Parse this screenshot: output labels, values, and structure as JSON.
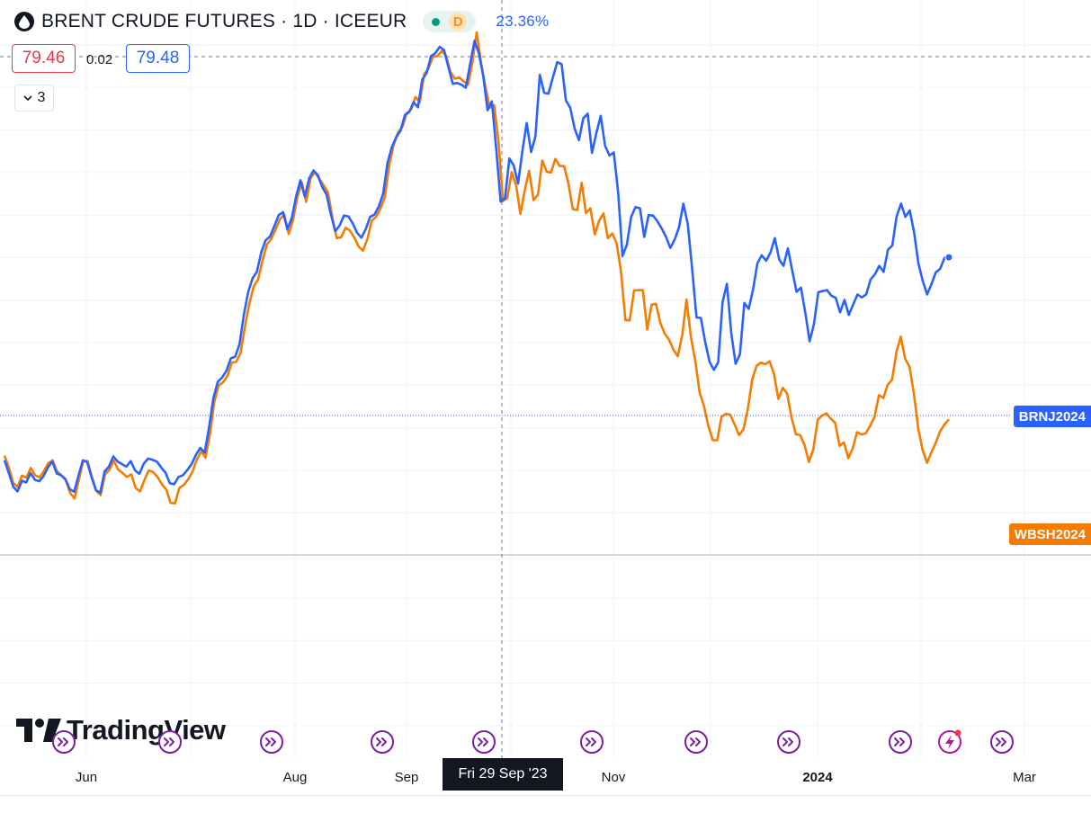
{
  "header": {
    "title": "BRENT CRUDE FUTURES · 1D · ICEEUR",
    "interval_badge": "D",
    "percent": "23.36%"
  },
  "prices": {
    "left": "79.46",
    "spread": "0.02",
    "right": "79.48"
  },
  "indicators_toggle": {
    "count": "3"
  },
  "series_tags": {
    "brn": "BRNJ2024",
    "wbs": "WBSH2024"
  },
  "x_axis": {
    "labels": [
      "Jun",
      "Aug",
      "Sep",
      "Nov",
      "2024",
      "Mar"
    ],
    "crosshair_label": "Fri 29 Sep '23"
  },
  "brand": {
    "logo_text": "TradingView"
  },
  "colors": {
    "brn": "#2962ff",
    "wbs": "#f57c00",
    "sell_red": "#f23645",
    "buy_blue": "#2962ff",
    "event_purple": "#7b1fa2"
  },
  "events": [
    {
      "icon": "dividend-arrow-icon"
    },
    {
      "icon": "dividend-arrow-icon"
    },
    {
      "icon": "dividend-arrow-icon"
    },
    {
      "icon": "dividend-arrow-icon"
    },
    {
      "icon": "dividend-arrow-icon"
    },
    {
      "icon": "dividend-arrow-icon"
    },
    {
      "icon": "dividend-arrow-icon"
    },
    {
      "icon": "dividend-arrow-icon"
    },
    {
      "icon": "dividend-arrow-icon"
    },
    {
      "icon": "lightning-icon"
    },
    {
      "icon": "dividend-arrow-icon"
    }
  ],
  "chart_data": {
    "type": "line",
    "title": "BRENT CRUDE FUTURES · 1D · ICEEUR",
    "xlabel": "",
    "ylabel": "",
    "grid": true,
    "x_ticks": [
      "Jun",
      "Aug",
      "Sep",
      "Nov",
      "2024",
      "Mar"
    ],
    "series": [
      {
        "name": "BRNJ2024",
        "color": "#2962ff",
        "values": [
          22.2,
          19.2,
          16.0,
          14.9,
          17.4,
          17.0,
          19.2,
          17.6,
          17.3,
          18.5,
          20.6,
          21.9,
          19.1,
          18.7,
          17.8,
          15.4,
          14.8,
          18.6,
          22.2,
          21.8,
          18.2,
          15.2,
          14.6,
          19.6,
          20.7,
          23.1,
          21.9,
          21.3,
          20.7,
          22.0,
          19.8,
          19.0,
          21.4,
          22.6,
          22.3,
          21.9,
          20.5,
          19.3,
          16.8,
          16.6,
          18.3,
          18.7,
          19.9,
          21.3,
          23.5,
          25.1,
          24.0,
          29.9,
          36.8,
          40.6,
          41.6,
          43.2,
          46.1,
          46.5,
          49.4,
          56.3,
          61.7,
          64.9,
          66.4,
          71.0,
          73.8,
          74.7,
          77.1,
          79.7,
          80.4,
          76.4,
          79.0,
          84.1,
          87.9,
          84.0,
          88.3,
          90.2,
          89.1,
          86.3,
          84.5,
          79.9,
          75.9,
          77.3,
          79.6,
          79.4,
          77.8,
          75.6,
          74.4,
          76.4,
          79.3,
          79.8,
          81.7,
          84.7,
          91.9,
          95.6,
          98.0,
          99.5,
          103.2,
          103.9,
          106.2,
          105.0,
          111.5,
          113.1,
          117.0,
          117.7,
          119.2,
          118.4,
          114.5,
          110.5,
          110.7,
          110.3,
          109.6,
          115.1,
          120.6,
          117.7,
          112.3,
          104.3,
          106.4,
          95.1,
          82.9,
          83.7,
          93.0,
          91.4,
          87.1,
          94.7,
          101.3,
          94.5,
          98.2,
          112.6,
          108.4,
          108.2,
          112.0,
          115.6,
          115.1,
          106.6,
          104.9,
          100.0,
          97.3,
          102.4,
          103.5,
          94.3,
          99.0,
          103.0,
          96.0,
          93.7,
          94.4,
          85.0,
          70.1,
          72.7,
          79.3,
          81.6,
          81.3,
          74.6,
          79.7,
          79.6,
          78.3,
          76.6,
          74.6,
          72.0,
          74.0,
          76.9,
          82.4,
          77.6,
          67.2,
          55.7,
          55.6,
          50.0,
          45.3,
          43.4,
          45.2,
          59.3,
          63.6,
          51.9,
          44.8,
          47.1,
          59.1,
          57.7,
          62.3,
          68.4,
          70.3,
          69.0,
          70.9,
          74.3,
          69.3,
          67.8,
          71.9,
          66.7,
          61.7,
          62.7,
          56.9,
          50.1,
          54.2,
          61.6,
          61.9,
          62.1,
          60.8,
          60.3,
          56.9,
          59.8,
          56.3,
          58.7,
          61.1,
          60.4,
          61.1,
          64.6,
          65.8,
          67.8,
          66.4,
          71.6,
          72.6,
          79.4,
          82.4,
          79.3,
          80.8,
          75.7,
          68.4,
          64.2,
          61.1,
          63.5,
          66.3,
          67.1,
          69.7,
          69.8
        ]
      },
      {
        "name": "WBSH2024",
        "color": "#f57c00",
        "values": [
          23.3,
          20.5,
          16.9,
          15.9,
          18.6,
          18.1,
          20.4,
          18.7,
          18.2,
          19.6,
          21.5,
          22.2,
          19.6,
          18.7,
          17.5,
          14.6,
          13.2,
          17.5,
          22.0,
          22.0,
          18.3,
          15.0,
          14.0,
          18.9,
          20.0,
          22.1,
          20.0,
          19.2,
          18.3,
          18.9,
          15.7,
          14.9,
          17.6,
          19.8,
          19.4,
          18.3,
          16.6,
          15.3,
          12.2,
          12.1,
          15.7,
          16.4,
          17.7,
          19.5,
          22.4,
          24.3,
          22.8,
          28.6,
          35.9,
          39.8,
          40.5,
          42.0,
          45.1,
          45.3,
          47.4,
          53.6,
          58.9,
          63.0,
          64.6,
          69.0,
          72.8,
          74.1,
          76.3,
          78.8,
          79.8,
          75.3,
          78.5,
          84.0,
          87.4,
          82.8,
          88.3,
          89.8,
          88.2,
          86.7,
          85.0,
          79.1,
          74.3,
          74.5,
          76.7,
          76.1,
          74.5,
          72.3,
          71.4,
          74.1,
          78.4,
          79.3,
          81.3,
          84.0,
          91.5,
          96.1,
          99.1,
          100.4,
          103.6,
          104.5,
          107.4,
          106.2,
          112.8,
          114.1,
          116.9,
          117.0,
          118.2,
          117.1,
          113.3,
          111.7,
          112.0,
          111.1,
          110.3,
          115.4,
          122.6,
          115.4,
          109.8,
          104.9,
          105.5,
          96.9,
          83.0,
          83.7,
          89.8,
          86.7,
          80.0,
          85.6,
          90.1,
          83.2,
          84.5,
          92.5,
          89.9,
          89.7,
          92.9,
          91.2,
          91.2,
          87.0,
          81.1,
          80.9,
          87.3,
          80.2,
          81.3,
          75.2,
          78.4,
          80.1,
          74.3,
          75.4,
          73.1,
          66.6,
          55.1,
          55.0,
          62.0,
          62.1,
          62.1,
          52.9,
          58.7,
          58.9,
          54.4,
          51.9,
          50.5,
          48.1,
          46.6,
          51.5,
          59.9,
          51.1,
          45.4,
          38.1,
          34.8,
          30.2,
          26.9,
          26.9,
          32.4,
          33.1,
          32.9,
          30.6,
          28.1,
          29.4,
          34.1,
          41.1,
          44.3,
          45.1,
          44.7,
          45.4,
          42.4,
          36.6,
          39.2,
          37.9,
          32.3,
          28.3,
          28.1,
          25.7,
          21.8,
          24.8,
          31.7,
          32.7,
          33.2,
          31.9,
          31.0,
          25.6,
          26.4,
          22.7,
          25.0,
          28.8,
          28.2,
          28.5,
          30.3,
          32.4,
          37.5,
          36.8,
          39.9,
          41.1,
          47.6,
          51.2,
          46.0,
          44.1,
          37.8,
          29.6,
          24.6,
          21.6,
          24.1,
          26.3,
          29.0,
          30.6,
          31.8
        ]
      }
    ]
  }
}
